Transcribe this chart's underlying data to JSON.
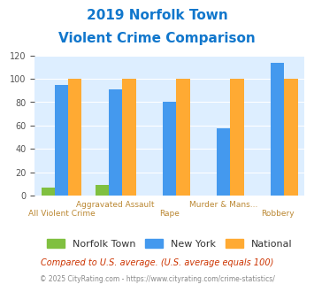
{
  "title_line1": "2019 Norfolk Town",
  "title_line2": "Violent Crime Comparison",
  "categories": [
    "All Violent Crime",
    "Aggravated Assault",
    "Rape",
    "Murder & Mans...",
    "Robbery"
  ],
  "norfolk_values": [
    7,
    9,
    0,
    0,
    0
  ],
  "newyork_values": [
    95,
    91,
    80,
    58,
    114
  ],
  "national_values": [
    100,
    100,
    100,
    100,
    100
  ],
  "norfolk_color": "#80c040",
  "newyork_color": "#4499ee",
  "national_color": "#ffaa33",
  "title_color": "#1177cc",
  "axis_label_color": "#bb8833",
  "bg_color": "#ddeeff",
  "ylim": [
    0,
    120
  ],
  "yticks": [
    0,
    20,
    40,
    60,
    80,
    100,
    120
  ],
  "footnote1": "Compared to U.S. average. (U.S. average equals 100)",
  "footnote2": "© 2025 CityRating.com - https://www.cityrating.com/crime-statistics/",
  "footnote1_color": "#cc3300",
  "footnote2_color": "#888888",
  "legend_labels": [
    "Norfolk Town",
    "New York",
    "National"
  ],
  "ax_labels_top": {
    "1": "Aggravated Assault",
    "3": "Murder & Mans..."
  },
  "ax_labels_bottom": {
    "0": "All Violent Crime",
    "2": "Rape",
    "4": "Robbery"
  }
}
